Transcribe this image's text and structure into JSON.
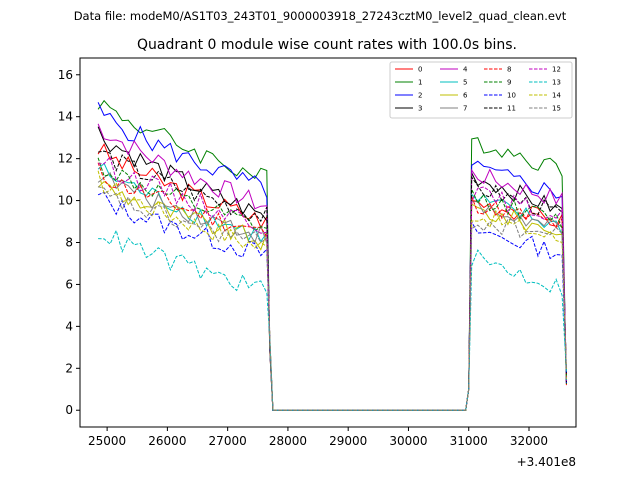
{
  "chart_data": {
    "type": "line",
    "suptitle": "Data file: modeM0/AS1T03_243T01_9000003918_27243cztM0_level2_quad_clean.evt",
    "title": "Quadrant 0 module wise count rates with 100.0s bins.",
    "xlabel": "",
    "ylabel": "",
    "x_offset_label": "+3.401e8",
    "xlim": [
      24550,
      32780
    ],
    "ylim": [
      -0.8,
      16.8
    ],
    "x_ticks": [
      25000,
      26000,
      27000,
      28000,
      29000,
      30000,
      31000,
      32000
    ],
    "y_ticks": [
      0,
      2,
      4,
      6,
      8,
      10,
      12,
      14,
      16
    ],
    "legend_location": "upper right",
    "segment_a": {
      "t_start": 24850,
      "t_end": 27650,
      "t_step": 100
    },
    "segment_b": {
      "t_start": 31050,
      "t_end": 32550,
      "t_step": 100
    },
    "gap": {
      "t_start": 27750,
      "t_end": 30950,
      "value": 0
    },
    "series": [
      {
        "name": "0",
        "color": "#ff0000",
        "dash": "solid",
        "start": 12.5,
        "end": 9.0,
        "start2": 10.0,
        "end2": 9.0
      },
      {
        "name": "1",
        "color": "#008000",
        "dash": "solid",
        "start": 14.8,
        "end": 11.0,
        "start2": 12.9,
        "end2": 11.5
      },
      {
        "name": "2",
        "color": "#0000ff",
        "dash": "solid",
        "start": 14.3,
        "end": 10.5,
        "start2": 11.6,
        "end2": 10.3
      },
      {
        "name": "3",
        "color": "#000000",
        "dash": "solid",
        "start": 13.3,
        "end": 9.2,
        "start2": 11.2,
        "end2": 9.5
      },
      {
        "name": "4",
        "color": "#bf00bf",
        "dash": "solid",
        "start": 13.6,
        "end": 9.7,
        "start2": 11.3,
        "end2": 10.0
      },
      {
        "name": "5",
        "color": "#00bfbf",
        "dash": "solid",
        "start": 11.6,
        "end": 8.2,
        "start2": 10.1,
        "end2": 8.7
      },
      {
        "name": "6",
        "color": "#bfbf00",
        "dash": "solid",
        "start": 10.9,
        "end": 8.0,
        "start2": 9.6,
        "end2": 8.5
      },
      {
        "name": "7",
        "color": "#808080",
        "dash": "solid",
        "start": 11.3,
        "end": 8.3,
        "start2": 9.7,
        "end2": 8.6
      },
      {
        "name": "8",
        "color": "#ff0000",
        "dash": "dashed",
        "start": 11.4,
        "end": 8.4,
        "start2": 9.9,
        "end2": 8.8
      },
      {
        "name": "9",
        "color": "#008000",
        "dash": "dashed",
        "start": 11.8,
        "end": 8.6,
        "start2": 10.2,
        "end2": 9.0
      },
      {
        "name": "10",
        "color": "#0000ff",
        "dash": "dashed",
        "start": 10.2,
        "end": 7.4,
        "start2": 8.6,
        "end2": 7.5
      },
      {
        "name": "11",
        "color": "#000000",
        "dash": "dashed",
        "start": 12.4,
        "end": 9.2,
        "start2": 10.7,
        "end2": 9.3
      },
      {
        "name": "12",
        "color": "#bf00bf",
        "dash": "dashed",
        "start": 12.0,
        "end": 8.8,
        "start2": 10.4,
        "end2": 9.2
      },
      {
        "name": "13",
        "color": "#00bfbf",
        "dash": "dashed",
        "start": 8.6,
        "end": 5.7,
        "start2": 7.3,
        "end2": 5.8
      },
      {
        "name": "14",
        "color": "#bfbf00",
        "dash": "dashed",
        "start": 11.0,
        "end": 7.7,
        "start2": 9.4,
        "end2": 8.1
      },
      {
        "name": "15",
        "color": "#808080",
        "dash": "dashed",
        "start": 10.4,
        "end": 7.9,
        "start2": 9.0,
        "end2": 8.3
      }
    ]
  }
}
